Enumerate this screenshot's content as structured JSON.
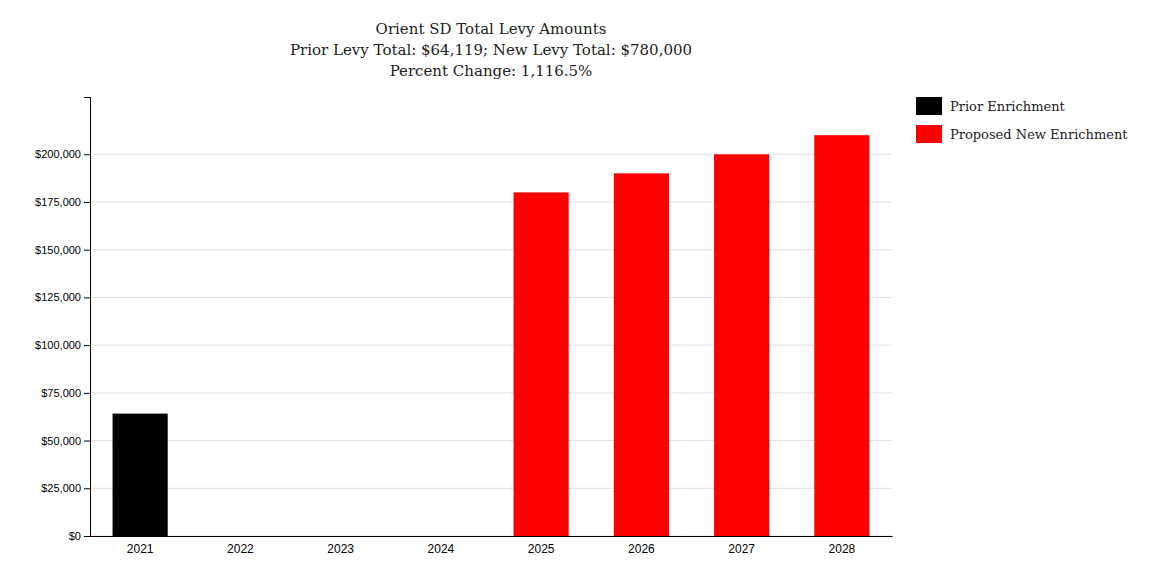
{
  "chart_data": {
    "type": "bar",
    "title": "Orient SD Total Levy Amounts\nPrior Levy Total:  $64,119; New Levy Total: $780,000\nPercent Change: 1,116.5%",
    "categories": [
      "2021",
      "2022",
      "2023",
      "2024",
      "2025",
      "2026",
      "2027",
      "2028"
    ],
    "series": [
      {
        "name": "Prior Enrichment",
        "color": "#000000",
        "values": [
          64119,
          null,
          null,
          null,
          null,
          null,
          null,
          null
        ]
      },
      {
        "name": "Proposed New Enrichment",
        "color": "#ff0000",
        "values": [
          null,
          0,
          0,
          0,
          180000,
          190000,
          200000,
          210000
        ]
      }
    ],
    "ylim": [
      0,
      230000
    ],
    "yticks": [
      {
        "value": 0,
        "label": "$0"
      },
      {
        "value": 25000,
        "label": "$25,000"
      },
      {
        "value": 50000,
        "label": "$50,000"
      },
      {
        "value": 75000,
        "label": "$75,000"
      },
      {
        "value": 100000,
        "label": "$100,000"
      },
      {
        "value": 125000,
        "label": "$125,000"
      },
      {
        "value": 150000,
        "label": "$150,000"
      },
      {
        "value": 175000,
        "label": "$175,000"
      },
      {
        "value": 200000,
        "label": "$200,000"
      }
    ],
    "grid": true,
    "legend": "right"
  }
}
